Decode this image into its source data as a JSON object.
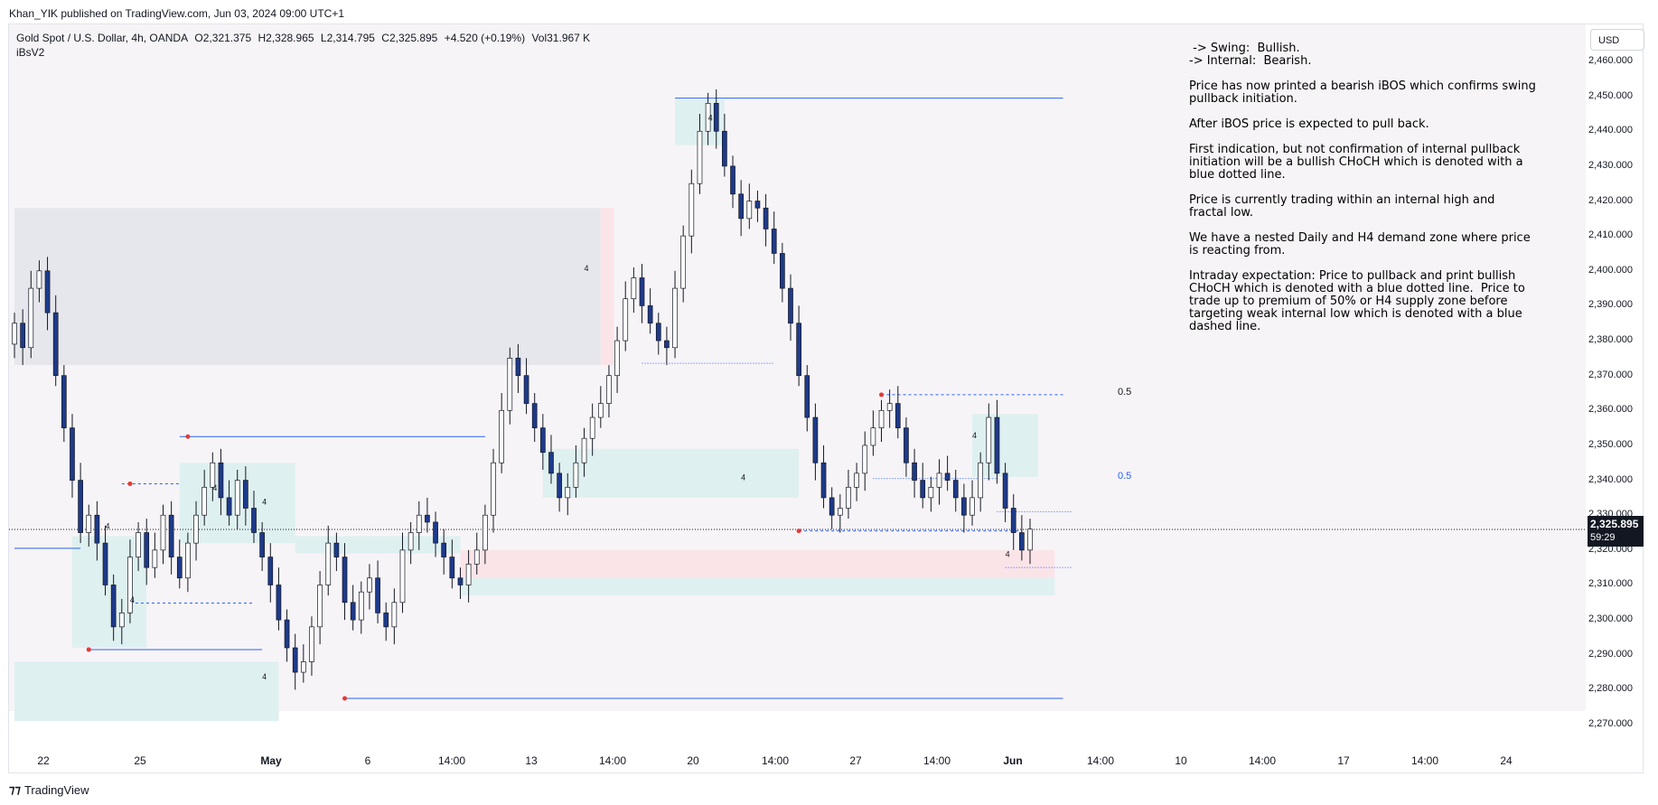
{
  "header": {
    "published": "Khan_YIK published on TradingView.com, Jun 03, 2024 09:00 UTC+1"
  },
  "symbol": {
    "name": "Gold Spot / U.S. Dollar, 4h, OANDA",
    "open": "O2,321.375",
    "high": "H2,328.965",
    "low": "L2,314.795",
    "close": "C2,325.895",
    "change": "+4.520 (+0.19%)",
    "volume": "Vol31.967 K",
    "indicator": "iBsV2"
  },
  "currency_button": "USD",
  "notes": [
    " -> Swing:  Bullish.",
    "-> Internal:  Bearish.",
    "",
    "Price has now printed a bearish iBOS which confirms swing",
    "pullback initiation.",
    "",
    "After iBOS price is expected to pull back.",
    "",
    "First indication, but not confirmation of internal pullback",
    "initiation will be a bullish CHoCH which is denoted with a",
    "blue dotted line.",
    "",
    "Price is currently trading within an internal high and",
    "fractal low.",
    "",
    "We have a nested Daily and H4 demand zone where price",
    "is reacting from.",
    "",
    "Intraday expectation: Price to pullback and print bullish",
    "CHoCH which is denoted with a blue dotted line.  Price to",
    "trade up to premium of 50% or H4 supply zone before",
    "targeting weak internal low which is denoted with a blue",
    "dashed line."
  ],
  "fib_labels": {
    "upper": "0.5",
    "lower": "0.5"
  },
  "current_price": {
    "value": "2,325.895",
    "countdown": "59:29"
  },
  "colors": {
    "bull_candle": "#ffffff",
    "bear_candle": "#1e3a8a",
    "wick": "#131722",
    "structure_line": "#2962ff",
    "pivot": "#e53935",
    "supply_zone": "#e6e7ed",
    "demand_zone": "#dff0f0",
    "pink_zone": "#fbe4e8",
    "chart_bg": "#f7f4f7"
  },
  "footer": {
    "brand": "TradingView"
  },
  "chart_data": {
    "type": "candlestick",
    "title": "Gold Spot / U.S. Dollar, 4h, OANDA",
    "ylim": [
      2265,
      2468
    ],
    "y_ticks": [
      "2,460.000",
      "2,450.000",
      "2,440.000",
      "2,430.000",
      "2,420.000",
      "2,410.000",
      "2,400.000",
      "2,390.000",
      "2,380.000",
      "2,370.000",
      "2,360.000",
      "2,350.000",
      "2,340.000",
      "2,330.000",
      "2,320.000",
      "2,310.000",
      "2,300.000",
      "2,290.000",
      "2,280.000",
      "2,270.000"
    ],
    "y_tick_values": [
      2460,
      2450,
      2440,
      2430,
      2420,
      2410,
      2400,
      2390,
      2380,
      2370,
      2360,
      2350,
      2340,
      2330,
      2320,
      2310,
      2300,
      2290,
      2280,
      2270
    ],
    "x_ticks": [
      "22",
      "25",
      "May",
      "6",
      "14:00",
      "13",
      "14:00",
      "20",
      "14:00",
      "27",
      "14:00",
      "Jun",
      "14:00",
      "10",
      "14:00",
      "17",
      "14:00",
      "24"
    ],
    "x_tick_bold": [
      "May",
      "Jun"
    ],
    "close_series": [
      2385,
      2378,
      2395,
      2400,
      2388,
      2370,
      2355,
      2340,
      2325,
      2330,
      2322,
      2310,
      2298,
      2302,
      2318,
      2325,
      2315,
      2320,
      2330,
      2318,
      2312,
      2322,
      2330,
      2338,
      2345,
      2335,
      2330,
      2340,
      2332,
      2325,
      2318,
      2310,
      2300,
      2292,
      2285,
      2288,
      2298,
      2310,
      2322,
      2318,
      2305,
      2300,
      2308,
      2312,
      2302,
      2298,
      2305,
      2320,
      2325,
      2330,
      2328,
      2322,
      2318,
      2312,
      2310,
      2316,
      2320,
      2330,
      2345,
      2360,
      2375,
      2370,
      2362,
      2355,
      2348,
      2342,
      2335,
      2338,
      2345,
      2352,
      2358,
      2362,
      2370,
      2380,
      2392,
      2398,
      2390,
      2385,
      2380,
      2378,
      2395,
      2410,
      2425,
      2440,
      2448,
      2440,
      2430,
      2422,
      2415,
      2420,
      2418,
      2412,
      2405,
      2395,
      2385,
      2370,
      2358,
      2345,
      2335,
      2330,
      2332,
      2338,
      2342,
      2350,
      2355,
      2360,
      2362,
      2355,
      2345,
      2340,
      2335,
      2338,
      2342,
      2340,
      2335,
      2330,
      2335,
      2345,
      2358,
      2342,
      2332,
      2325,
      2320,
      2326
    ],
    "levels": [
      {
        "name": "swing-high",
        "value": 2449.5
      },
      {
        "name": "upper-fib",
        "value": 2364
      },
      {
        "name": "lower-fib",
        "value": 2340
      },
      {
        "name": "current",
        "value": 2325.9
      },
      {
        "name": "swing-low",
        "value": 2277.5
      }
    ]
  }
}
